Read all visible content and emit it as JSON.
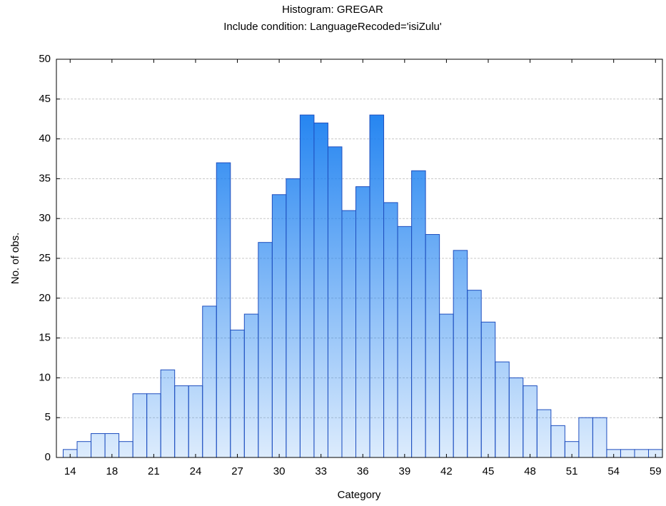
{
  "chart_data": {
    "type": "histogram",
    "title": "Histogram: GREGAR",
    "subtitle": "Include condition: LanguageRecoded='isiZulu'",
    "x_label": "Category",
    "y_label": "No. of obs.",
    "categories": [
      "14",
      null,
      null,
      "18",
      null,
      null,
      "21",
      null,
      null,
      "24",
      null,
      null,
      "27",
      null,
      null,
      "30",
      null,
      null,
      "33",
      null,
      null,
      "36",
      null,
      null,
      "39",
      null,
      null,
      "42",
      null,
      null,
      "45",
      null,
      null,
      "48",
      null,
      null,
      "51",
      null,
      null,
      "54",
      null,
      null,
      "59"
    ],
    "values": [
      1,
      2,
      3,
      3,
      2,
      8,
      8,
      11,
      9,
      9,
      19,
      37,
      16,
      18,
      27,
      33,
      35,
      43,
      42,
      39,
      31,
      34,
      43,
      32,
      29,
      36,
      28,
      18,
      26,
      21,
      17,
      12,
      10,
      9,
      6,
      4,
      2,
      5,
      5,
      1,
      1,
      1,
      1
    ],
    "color": "#1a7ff0",
    "ylim": [
      0,
      50
    ],
    "yticks": [
      0,
      5,
      10,
      15,
      20,
      25,
      30,
      35,
      40,
      45,
      50
    ],
    "grid": true
  }
}
